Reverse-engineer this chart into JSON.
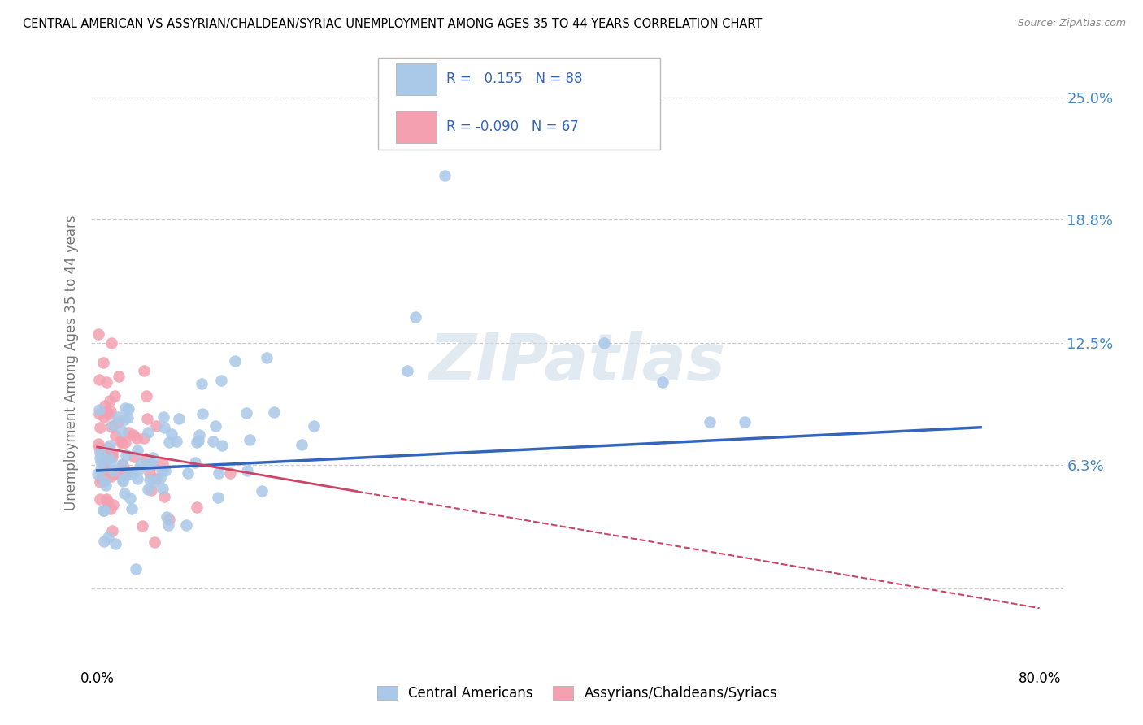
{
  "title": "CENTRAL AMERICAN VS ASSYRIAN/CHALDEAN/SYRIAC UNEMPLOYMENT AMONG AGES 35 TO 44 YEARS CORRELATION CHART",
  "source": "Source: ZipAtlas.com",
  "ylabel": "Unemployment Among Ages 35 to 44 years",
  "background_color": "#ffffff",
  "grid_color": "#cccccc",
  "blue_color": "#aac8e8",
  "pink_color": "#f4a0b0",
  "blue_line_color": "#3366bb",
  "pink_line_color": "#cc4466",
  "right_label_color": "#4488cc",
  "legend_blue_label": "Central Americans",
  "legend_pink_label": "Assyrians/Chaldeans/Syriacs",
  "R_blue": 0.155,
  "N_blue": 88,
  "R_pink": -0.09,
  "N_pink": 67,
  "ytick_vals": [
    0.0,
    0.063,
    0.125,
    0.188,
    0.25
  ],
  "ytick_labels": [
    "",
    "6.3%",
    "12.5%",
    "18.8%",
    "25.0%"
  ],
  "xlim": [
    -0.005,
    0.82
  ],
  "ylim": [
    -0.04,
    0.27
  ]
}
